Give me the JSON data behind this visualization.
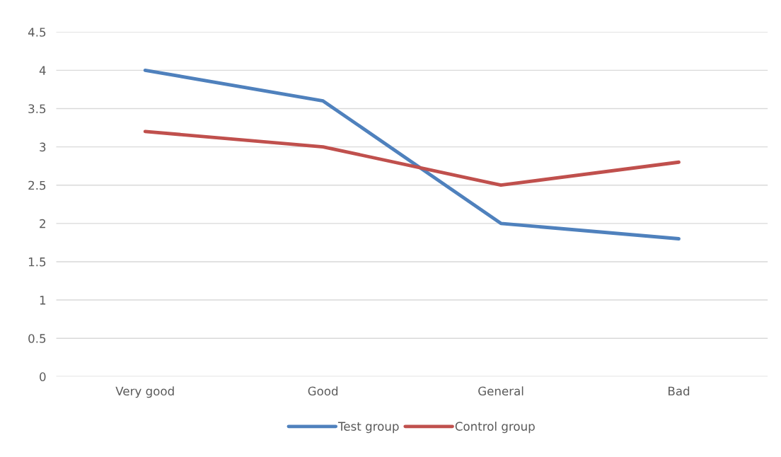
{
  "chart_data": {
    "type": "line",
    "categories": [
      "Very good",
      "Good",
      "General",
      "Bad"
    ],
    "series": [
      {
        "name": "Test group",
        "color": "#4f81bd",
        "values": [
          4,
          3.6,
          2,
          1.8
        ]
      },
      {
        "name": "Control group",
        "color": "#c0504d",
        "values": [
          3.2,
          3.0,
          2.5,
          2.8
        ]
      }
    ],
    "ylim": [
      0,
      4.5
    ],
    "yticks": [
      0,
      0.5,
      1,
      1.5,
      2,
      2.5,
      3,
      3.5,
      4,
      4.5
    ],
    "grid": "y",
    "legend": "bottom",
    "marker": "none",
    "line_style": "solid"
  }
}
